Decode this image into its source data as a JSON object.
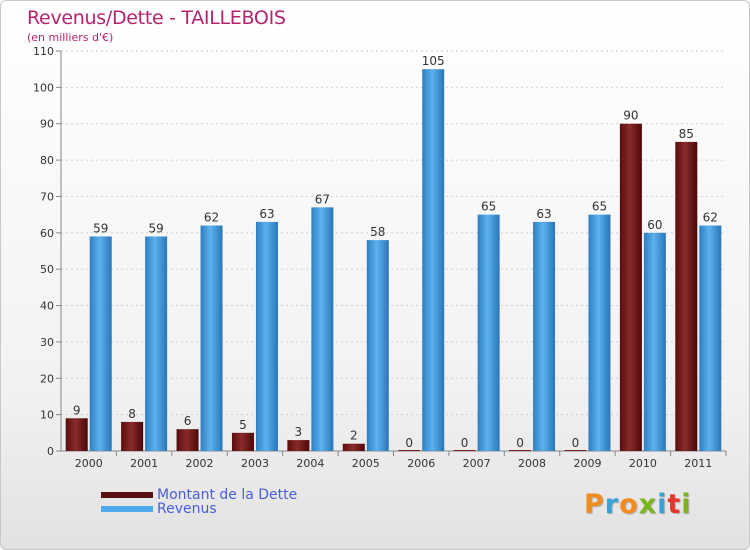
{
  "chart_data": {
    "type": "bar",
    "title": "Revenus/Dette - TAILLEBOIS",
    "subtitle": "(en milliers d'€)",
    "categories": [
      "2000",
      "2001",
      "2002",
      "2003",
      "2004",
      "2005",
      "2006",
      "2007",
      "2008",
      "2009",
      "2010",
      "2011"
    ],
    "series": [
      {
        "name": "Montant de la Dette",
        "values": [
          9,
          8,
          6,
          5,
          3,
          2,
          0,
          0,
          0,
          0,
          90,
          85
        ],
        "color": "#7a1f1f"
      },
      {
        "name": "Revenus",
        "values": [
          59,
          59,
          62,
          63,
          67,
          58,
          105,
          65,
          63,
          65,
          60,
          62
        ],
        "color": "#4fa8e8"
      }
    ],
    "ylim": [
      0,
      110
    ],
    "yticks": [
      0,
      10,
      20,
      30,
      40,
      50,
      60,
      70,
      80,
      90,
      100,
      110
    ],
    "grid": true,
    "xlabel": "",
    "ylabel": "",
    "legend_position": "bottom-left"
  },
  "logo": {
    "text": "Proxiti",
    "colors": [
      "#f28c1e",
      "#3aa0d8",
      "#f28c1e",
      "#7ab51d",
      "#3aa0d8",
      "#e8342a",
      "#7ab51d"
    ]
  }
}
